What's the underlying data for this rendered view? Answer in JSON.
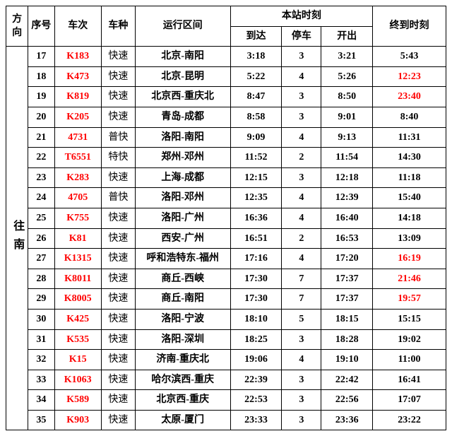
{
  "headers": {
    "direction": "方向",
    "seq": "序号",
    "train": "车次",
    "type": "车种",
    "route": "运行区间",
    "station": "本站时刻",
    "arrive": "到达",
    "stop": "停车",
    "depart": "开出",
    "final": "终到时刻"
  },
  "direction_label": "往南",
  "col_widths": {
    "dir": 30,
    "seq": 36,
    "train": 64,
    "type": 46,
    "route": 130,
    "arrive": 70,
    "stop": 54,
    "depart": 70,
    "final": 100
  },
  "rows": [
    {
      "seq": "17",
      "train": "K183",
      "type": "快速",
      "route": "北京-南阳",
      "arrive": "3:18",
      "stop": "3",
      "depart": "3:21",
      "final": "5:43",
      "final_red": false
    },
    {
      "seq": "18",
      "train": "K473",
      "type": "快速",
      "route": "北京-昆明",
      "arrive": "5:22",
      "stop": "4",
      "depart": "5:26",
      "final": "12:23",
      "final_red": true
    },
    {
      "seq": "19",
      "train": "K819",
      "type": "快速",
      "route": "北京西-重庆北",
      "arrive": "8:47",
      "stop": "3",
      "depart": "8:50",
      "final": "23:40",
      "final_red": true
    },
    {
      "seq": "20",
      "train": "K205",
      "type": "快速",
      "route": "青岛-成都",
      "arrive": "8:58",
      "stop": "3",
      "depart": "9:01",
      "final": "8:40",
      "final_red": false
    },
    {
      "seq": "21",
      "train": "4731",
      "type": "普快",
      "route": "洛阳-南阳",
      "arrive": "9:09",
      "stop": "4",
      "depart": "9:13",
      "final": "11:31",
      "final_red": false
    },
    {
      "seq": "22",
      "train": "T6551",
      "type": "特快",
      "route": "郑州-邓州",
      "arrive": "11:52",
      "stop": "2",
      "depart": "11:54",
      "final": "14:30",
      "final_red": false
    },
    {
      "seq": "23",
      "train": "K283",
      "type": "快速",
      "route": "上海-成都",
      "arrive": "12:15",
      "stop": "3",
      "depart": "12:18",
      "final": "11:18",
      "final_red": false
    },
    {
      "seq": "24",
      "train": "4705",
      "type": "普快",
      "route": "洛阳-邓州",
      "arrive": "12:35",
      "stop": "4",
      "depart": "12:39",
      "final": "15:40",
      "final_red": false
    },
    {
      "seq": "25",
      "train": "K755",
      "type": "快速",
      "route": "洛阳-广州",
      "arrive": "16:36",
      "stop": "4",
      "depart": "16:40",
      "final": "14:18",
      "final_red": false
    },
    {
      "seq": "26",
      "train": "K81",
      "type": "快速",
      "route": "西安-广州",
      "arrive": "16:51",
      "stop": "2",
      "depart": "16:53",
      "final": "13:09",
      "final_red": false
    },
    {
      "seq": "27",
      "train": "K1315",
      "type": "快速",
      "route": "呼和浩特东-福州",
      "arrive": "17:16",
      "stop": "4",
      "depart": "17:20",
      "final": "16:19",
      "final_red": true
    },
    {
      "seq": "28",
      "train": "K8011",
      "type": "快速",
      "route": "商丘-西峡",
      "arrive": "17:30",
      "stop": "7",
      "depart": "17:37",
      "final": "21:46",
      "final_red": true
    },
    {
      "seq": "29",
      "train": "K8005",
      "type": "快速",
      "route": "商丘-南阳",
      "arrive": "17:30",
      "stop": "7",
      "depart": "17:37",
      "final": "19:57",
      "final_red": true
    },
    {
      "seq": "30",
      "train": "K425",
      "type": "快速",
      "route": "洛阳-宁波",
      "arrive": "18:10",
      "stop": "5",
      "depart": "18:15",
      "final": "15:15",
      "final_red": false
    },
    {
      "seq": "31",
      "train": "K535",
      "type": "快速",
      "route": "洛阳-深圳",
      "arrive": "18:25",
      "stop": "3",
      "depart": "18:28",
      "final": "19:02",
      "final_red": false
    },
    {
      "seq": "32",
      "train": "K15",
      "type": "快速",
      "route": "济南-重庆北",
      "arrive": "19:06",
      "stop": "4",
      "depart": "19:10",
      "final": "11:00",
      "final_red": false
    },
    {
      "seq": "33",
      "train": "K1063",
      "type": "快速",
      "route": "哈尔滨西-重庆",
      "arrive": "22:39",
      "stop": "3",
      "depart": "22:42",
      "final": "16:41",
      "final_red": false
    },
    {
      "seq": "34",
      "train": "K589",
      "type": "快速",
      "route": "北京西-重庆",
      "arrive": "22:53",
      "stop": "3",
      "depart": "22:56",
      "final": "17:07",
      "final_red": false
    },
    {
      "seq": "35",
      "train": "K903",
      "type": "快速",
      "route": "太原-厦门",
      "arrive": "23:33",
      "stop": "3",
      "depart": "23:36",
      "final": "23:22",
      "final_red": false
    }
  ]
}
